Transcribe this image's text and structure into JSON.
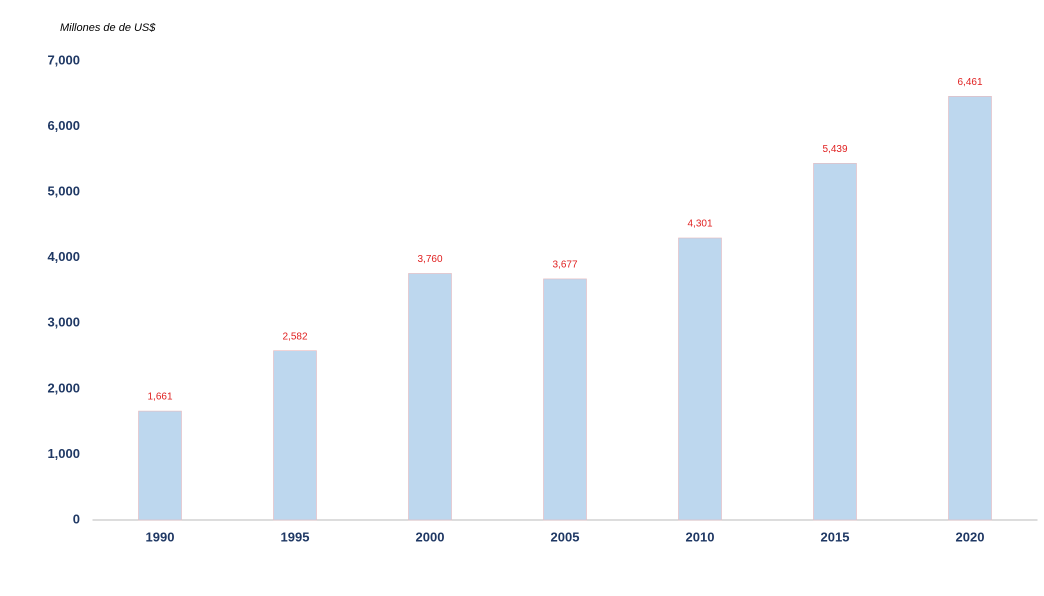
{
  "chart_data": {
    "type": "bar",
    "y_label": "Millones de  de US$",
    "categories": [
      "1990",
      "1995",
      "2000",
      "2005",
      "2010",
      "2015",
      "2020"
    ],
    "values": [
      1661,
      2582,
      3760,
      3677,
      4301,
      5439,
      6461
    ],
    "value_labels": [
      "1,661",
      "2,582",
      "3,760",
      "3,677",
      "4,301",
      "5,439",
      "6,461"
    ],
    "color": "#bdd7ee",
    "value_label_color": "#e02020",
    "ylim": [
      0,
      7000
    ],
    "yticks": [
      0,
      {
        "value": 1000,
        "label": "1,000"
      },
      {
        "value": 2000,
        "label": "2,000"
      },
      {
        "value": 3000,
        "label": "3,000"
      },
      {
        "value": 4000,
        "label": "4,000"
      },
      {
        "value": 5000,
        "label": "5,000"
      },
      {
        "value": 6000,
        "label": "6,000"
      },
      {
        "value": 7000,
        "label": "7,000"
      }
    ],
    "grid": false
  }
}
